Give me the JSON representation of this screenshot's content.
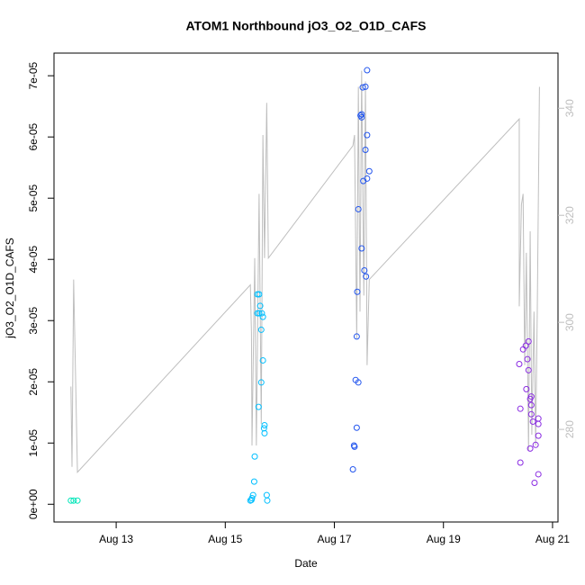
{
  "chart_data": {
    "type": "scatter",
    "title": "ATOM1 Northbound jO3_O2_O1D_CAFS",
    "x_label": "Date",
    "y_label": "jO3_O2_O1D_CAFS",
    "xlim": [
      11.86,
      21.1
    ],
    "xticks": [
      {
        "value": 13,
        "label": "Aug 13"
      },
      {
        "value": 15,
        "label": "Aug 15"
      },
      {
        "value": 17,
        "label": "Aug 17"
      },
      {
        "value": 19,
        "label": "Aug 19"
      },
      {
        "value": 21,
        "label": "Aug 21"
      }
    ],
    "ylim": [
      -2.9e-06,
      7.37e-05
    ],
    "yticks": [
      {
        "value": 0,
        "label": "0e+00"
      },
      {
        "value": 1e-05,
        "label": "1e-05"
      },
      {
        "value": 2e-05,
        "label": "2e-05"
      },
      {
        "value": 3e-05,
        "label": "3e-05"
      },
      {
        "value": 4e-05,
        "label": "4e-05"
      },
      {
        "value": 5e-05,
        "label": "5e-05"
      },
      {
        "value": 6e-05,
        "label": "6e-05"
      },
      {
        "value": 7e-05,
        "label": "7e-05"
      }
    ],
    "y2lim": [
      262.7,
      350.3
    ],
    "y2ticks": [
      280,
      300,
      320,
      340
    ],
    "y2_color": "#bebebe",
    "series": [
      {
        "type": "line",
        "axis": "y2",
        "color": "#bebebe",
        "x": [
          12.17,
          12.19,
          12.22,
          12.29,
          15.46,
          15.48,
          15.49,
          15.54,
          15.57,
          15.62,
          15.66,
          15.69,
          15.72,
          15.76,
          15.79,
          17.34,
          17.37,
          17.41,
          17.44,
          17.47,
          17.5,
          17.54,
          17.57,
          17.6,
          17.64,
          20.39,
          20.39,
          20.43,
          20.46,
          20.49,
          20.52,
          20.56,
          20.59,
          20.62,
          20.66,
          20.69,
          20.72,
          20.76
        ],
        "values": [
          288,
          273,
          308,
          272,
          307,
          298,
          277,
          312,
          277,
          324,
          281,
          335,
          312,
          341,
          312,
          333,
          335,
          297,
          344,
          302,
          347,
          305,
          345,
          292,
          308,
          338,
          303,
          322,
          324,
          292,
          313,
          276,
          317,
          279,
          302,
          277,
          302,
          344
        ]
      },
      {
        "color": "#00e5b8",
        "x": [
          12.17,
          12.22,
          12.29
        ],
        "values": [
          6e-07,
          6e-07,
          6e-07
        ]
      },
      {
        "color": "#00bfff",
        "x": [
          15.46,
          15.49,
          15.51,
          15.53,
          15.54,
          15.59,
          15.62,
          15.59,
          15.62,
          15.64,
          15.67,
          15.69,
          15.66,
          15.66,
          15.69,
          15.61,
          15.72,
          15.71,
          15.72,
          15.76,
          15.77,
          15.48
        ],
        "values": [
          6e-07,
          1e-06,
          1.5e-06,
          3.7e-06,
          7.8e-06,
          3.43e-05,
          3.43e-05,
          3.12e-05,
          3.12e-05,
          3.24e-05,
          3.12e-05,
          3.06e-05,
          2.85e-05,
          1.99e-05,
          2.35e-05,
          1.59e-05,
          1.29e-05,
          1.24e-05,
          1.16e-05,
          1.5e-06,
          6e-07,
          7e-07
        ]
      },
      {
        "color": "#2255ee",
        "x": [
          17.34,
          17.37,
          17.36,
          17.41,
          17.39,
          17.44,
          17.41,
          17.42,
          17.44,
          17.5,
          17.55,
          17.58,
          17.53,
          17.6,
          17.64,
          17.57,
          17.6,
          17.48,
          17.5,
          17.5,
          17.52,
          17.57,
          17.6
        ],
        "values": [
          5.7e-06,
          9.4e-06,
          9.6e-06,
          1.25e-05,
          2.03e-05,
          1.99e-05,
          2.74e-05,
          3.47e-05,
          4.82e-05,
          4.18e-05,
          3.82e-05,
          3.72e-05,
          5.28e-05,
          5.32e-05,
          5.44e-05,
          5.79e-05,
          6.03e-05,
          6.35e-05,
          6.32e-05,
          6.37e-05,
          6.81e-05,
          6.82e-05,
          7.09e-05
        ]
      },
      {
        "color": "#8a2be2",
        "x": [
          20.41,
          20.41,
          20.39,
          20.46,
          20.51,
          20.56,
          20.54,
          20.52,
          20.56,
          20.61,
          20.59,
          20.61,
          20.61,
          20.64,
          20.59,
          20.69,
          20.74,
          20.74,
          20.74,
          20.67,
          20.74
        ],
        "values": [
          6.8e-06,
          1.56e-05,
          2.29e-05,
          2.53e-05,
          2.59e-05,
          2.66e-05,
          2.37e-05,
          1.88e-05,
          2.19e-05,
          1.76e-05,
          1.72e-05,
          1.62e-05,
          1.47e-05,
          1.35e-05,
          9.1e-06,
          9.7e-06,
          1.12e-05,
          1.4e-05,
          1.31e-05,
          3.5e-06,
          4.9e-06
        ]
      }
    ]
  }
}
